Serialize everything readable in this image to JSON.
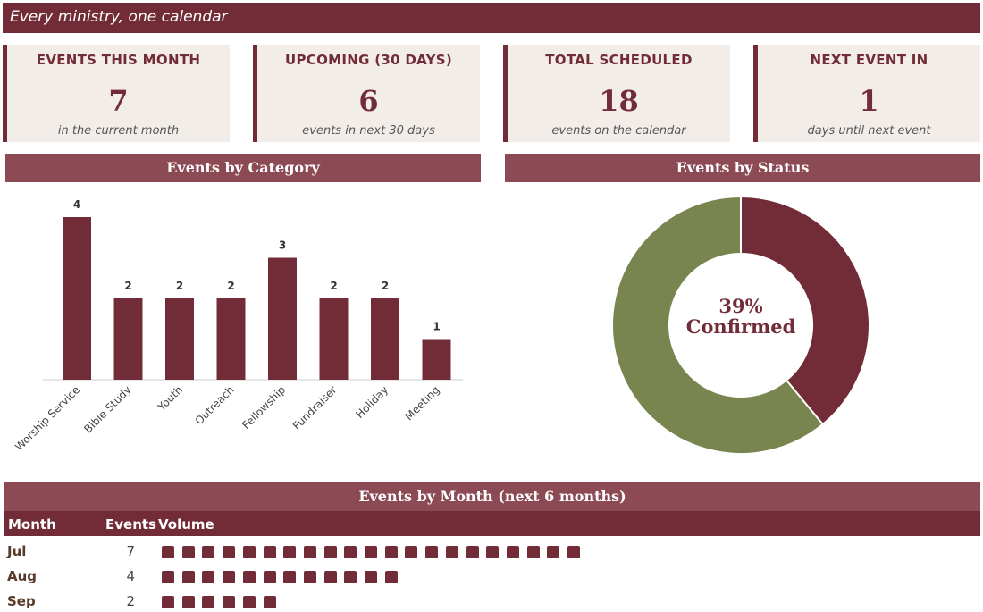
{
  "header": {
    "tagline": "Every ministry, one calendar"
  },
  "kpis": [
    {
      "title": "EVENTS THIS MONTH",
      "value": "7",
      "sub": "in the current month"
    },
    {
      "title": "UPCOMING (30 DAYS)",
      "value": "6",
      "sub": "events in next 30 days"
    },
    {
      "title": "TOTAL SCHEDULED",
      "value": "18",
      "sub": "events on the calendar"
    },
    {
      "title": "NEXT EVENT IN",
      "value": "1",
      "sub": "days until next event"
    }
  ],
  "panels": {
    "category_title": "Events by Category",
    "status_title": "Events by Status",
    "month_title": "Events by Month (next 6 months)"
  },
  "colors": {
    "primary": "#722c38",
    "panel": "#8c4a55",
    "card": "#f2ede8",
    "accent_green": "#79854f"
  },
  "chart_data": [
    {
      "type": "bar",
      "title": "Events by Category",
      "categories": [
        "Worship Service",
        "Bible Study",
        "Youth",
        "Outreach",
        "Fellowship",
        "Fundraiser",
        "Holiday",
        "Meeting"
      ],
      "values": [
        4,
        2,
        2,
        2,
        3,
        2,
        2,
        1
      ],
      "ylim": [
        0,
        4
      ]
    },
    {
      "type": "pie",
      "title": "Events by Status",
      "slices": [
        {
          "label": "Confirmed",
          "percent": 39,
          "color": "#722c38"
        },
        {
          "label": "",
          "percent": 61,
          "color": "#79854f"
        }
      ],
      "center_value": "39%",
      "center_label": "Confirmed"
    }
  ],
  "month_table": {
    "headers": {
      "month": "Month",
      "events": "Events",
      "volume": "Volume"
    },
    "rows": [
      {
        "month": "Jul",
        "events": "7",
        "volume_units": 21
      },
      {
        "month": "Aug",
        "events": "4",
        "volume_units": 12
      },
      {
        "month": "Sep",
        "events": "2",
        "volume_units": 6
      }
    ]
  }
}
